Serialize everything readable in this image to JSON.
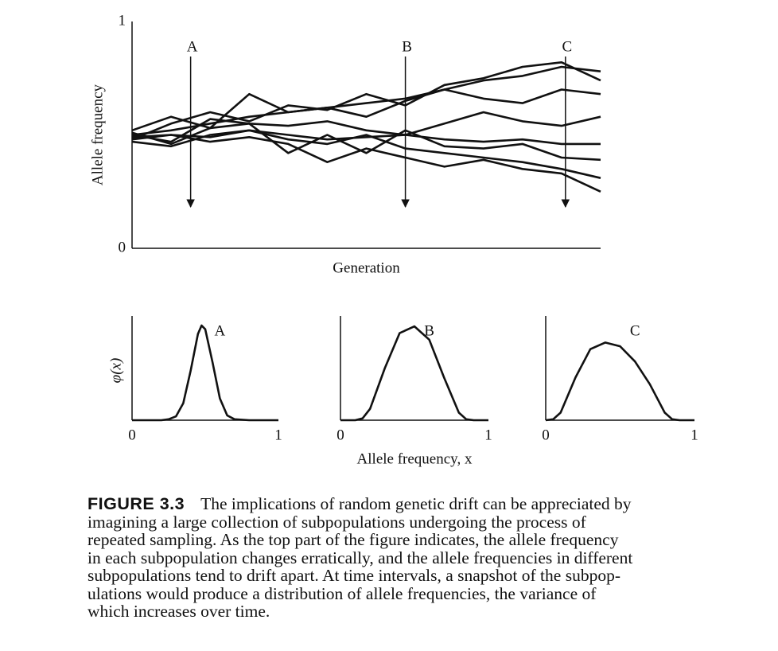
{
  "chart_data": [
    {
      "type": "line",
      "ylabel": "Allele frequency",
      "xlabel": "Generation",
      "x": [
        0,
        1,
        2,
        3,
        4,
        5,
        6,
        7,
        8,
        9,
        10,
        11,
        12
      ],
      "xlim": [
        0,
        12
      ],
      "ylim": [
        0,
        1
      ],
      "yticks": [
        0,
        1
      ],
      "grid": false,
      "series": [
        {
          "color": "#111111",
          "values": [
            0.5,
            0.52,
            0.55,
            0.58,
            0.6,
            0.62,
            0.64,
            0.66,
            0.7,
            0.74,
            0.76,
            0.8,
            0.78
          ]
        },
        {
          "color": "#111111",
          "values": [
            0.48,
            0.55,
            0.6,
            0.56,
            0.63,
            0.61,
            0.68,
            0.63,
            0.72,
            0.75,
            0.8,
            0.82,
            0.74
          ]
        },
        {
          "color": "#111111",
          "values": [
            0.52,
            0.58,
            0.53,
            0.68,
            0.6,
            0.62,
            0.58,
            0.65,
            0.7,
            0.66,
            0.64,
            0.7,
            0.68
          ]
        },
        {
          "color": "#111111",
          "values": [
            0.5,
            0.47,
            0.57,
            0.55,
            0.54,
            0.56,
            0.52,
            0.5,
            0.55,
            0.6,
            0.56,
            0.54,
            0.58
          ]
        },
        {
          "color": "#111111",
          "values": [
            0.49,
            0.5,
            0.49,
            0.52,
            0.5,
            0.48,
            0.49,
            0.5,
            0.48,
            0.47,
            0.48,
            0.46,
            0.46
          ]
        },
        {
          "color": "#111111",
          "values": [
            0.51,
            0.46,
            0.53,
            0.55,
            0.42,
            0.5,
            0.42,
            0.52,
            0.45,
            0.44,
            0.46,
            0.4,
            0.39
          ]
        },
        {
          "color": "#111111",
          "values": [
            0.47,
            0.45,
            0.5,
            0.52,
            0.48,
            0.46,
            0.5,
            0.44,
            0.42,
            0.4,
            0.38,
            0.35,
            0.31
          ]
        },
        {
          "color": "#111111",
          "values": [
            0.48,
            0.5,
            0.47,
            0.49,
            0.46,
            0.38,
            0.44,
            0.4,
            0.36,
            0.39,
            0.35,
            0.33,
            0.25
          ]
        }
      ],
      "annotations": [
        {
          "label": "A",
          "x": 1.5
        },
        {
          "label": "B",
          "x": 7
        },
        {
          "label": "C",
          "x": 11.1
        }
      ]
    },
    {
      "type": "line",
      "title": "A",
      "ylabel": "φ(x)",
      "x": [
        0,
        0.1,
        0.2,
        0.25,
        0.3,
        0.35,
        0.4,
        0.45,
        0.475,
        0.5,
        0.55,
        0.6,
        0.65,
        0.7,
        0.8,
        0.9,
        1
      ],
      "xlim": [
        0,
        1
      ],
      "xticks": [
        0,
        1
      ],
      "ylim": [
        0,
        1.05
      ],
      "color": "#111111",
      "values": [
        0,
        0,
        0,
        0.01,
        0.04,
        0.18,
        0.52,
        0.91,
        1.0,
        0.96,
        0.61,
        0.23,
        0.05,
        0.01,
        0,
        0,
        0
      ]
    },
    {
      "type": "line",
      "title": "B",
      "xlabel": "Allele frequency, x",
      "x": [
        0,
        0.1,
        0.15,
        0.2,
        0.3,
        0.4,
        0.5,
        0.6,
        0.7,
        0.8,
        0.85,
        0.9,
        1
      ],
      "xlim": [
        0,
        1
      ],
      "xticks": [
        0,
        1
      ],
      "ylim": [
        0,
        1.05
      ],
      "color": "#111111",
      "values": [
        0,
        0,
        0.02,
        0.12,
        0.55,
        0.92,
        0.99,
        0.85,
        0.45,
        0.08,
        0.01,
        0,
        0
      ]
    },
    {
      "type": "line",
      "title": "C",
      "x": [
        0,
        0.05,
        0.1,
        0.2,
        0.3,
        0.4,
        0.5,
        0.6,
        0.7,
        0.8,
        0.85,
        0.9,
        1
      ],
      "xlim": [
        0,
        1
      ],
      "xticks": [
        0,
        1
      ],
      "ylim": [
        0,
        1.05
      ],
      "color": "#111111",
      "values": [
        0,
        0.01,
        0.08,
        0.45,
        0.75,
        0.82,
        0.78,
        0.62,
        0.38,
        0.08,
        0.01,
        0,
        0
      ]
    }
  ],
  "caption": {
    "label": "FIGURE 3.3",
    "lines": [
      "The implications of random genetic drift can be appreciated by",
      "imagining a large collection of subpopulations undergoing the process of",
      "repeated sampling. As the top part of the figure indicates, the allele frequency",
      "in each subpopulation changes erratically, and the allele frequencies in different",
      "subpopulations tend to drift apart. At time intervals, a snapshot of the subpop-",
      "ulations would produce a distribution of allele frequencies, the variance of",
      "which increases over time."
    ]
  }
}
